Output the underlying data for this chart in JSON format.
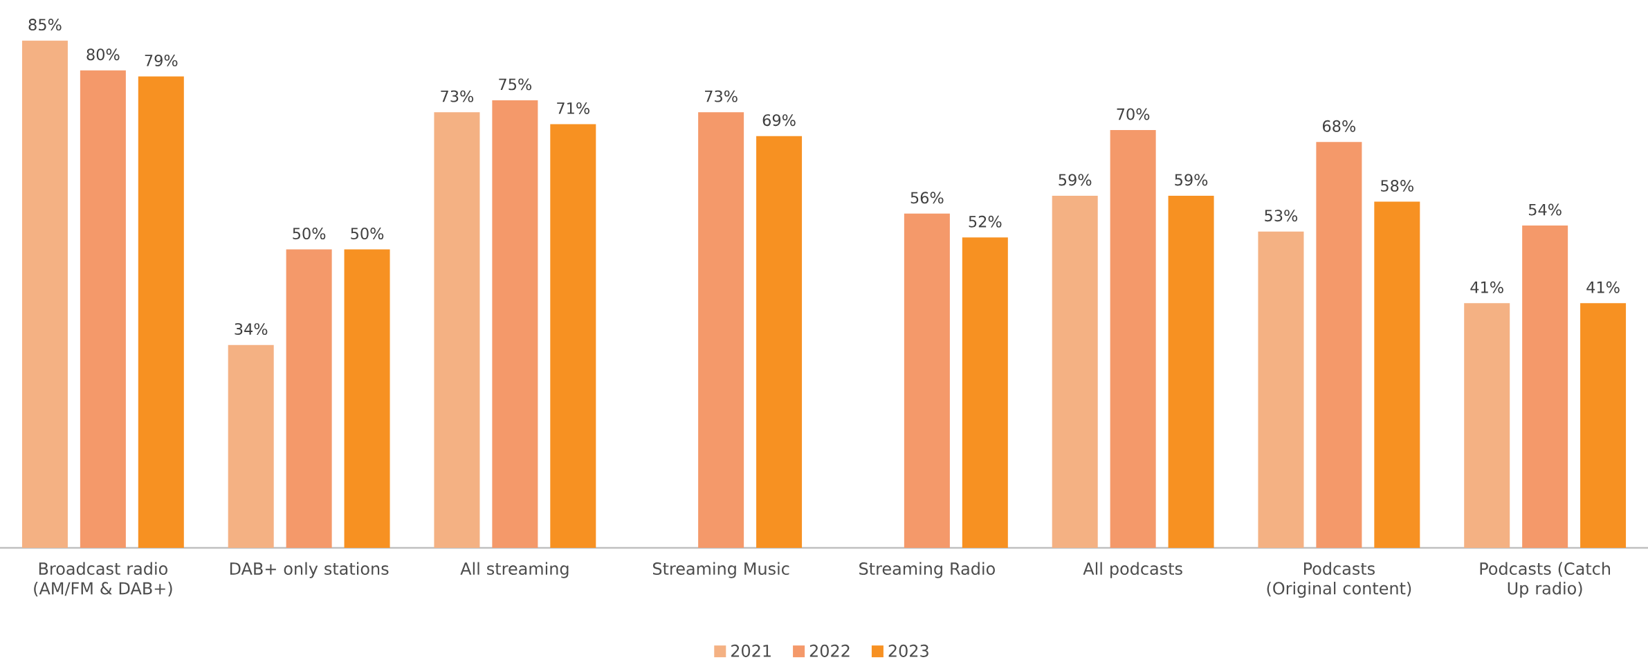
{
  "chart_data": {
    "type": "bar",
    "categories": [
      "Broadcast radio (AM/FM & DAB+)",
      "DAB+ only stations",
      "All streaming",
      "Streaming Music",
      "Streaming Radio",
      "All podcasts",
      "Podcasts (Original content)",
      "Podcasts (Catch Up radio)"
    ],
    "series": [
      {
        "name": "2021",
        "color": "#f4b183",
        "values": [
          85,
          34,
          73,
          null,
          null,
          59,
          53,
          41
        ],
        "value_labels": [
          "85%",
          "34%",
          "73%",
          null,
          null,
          "59%",
          "53%",
          "41%"
        ]
      },
      {
        "name": "2022",
        "color": "#f4996a",
        "values": [
          80,
          50,
          75,
          73,
          56,
          70,
          68,
          54
        ],
        "value_labels": [
          "80%",
          "50%",
          "75%",
          "73%",
          "56%",
          "70%",
          "68%",
          "54%"
        ]
      },
      {
        "name": "2023",
        "color": "#f79122",
        "values": [
          79,
          50,
          71,
          69,
          52,
          59,
          58,
          41
        ],
        "value_labels": [
          "79%",
          "50%",
          "71%",
          "69%",
          "52%",
          "59%",
          "58%",
          "41%"
        ]
      }
    ],
    "tick_labels": "x",
    "legend": "bottom"
  }
}
